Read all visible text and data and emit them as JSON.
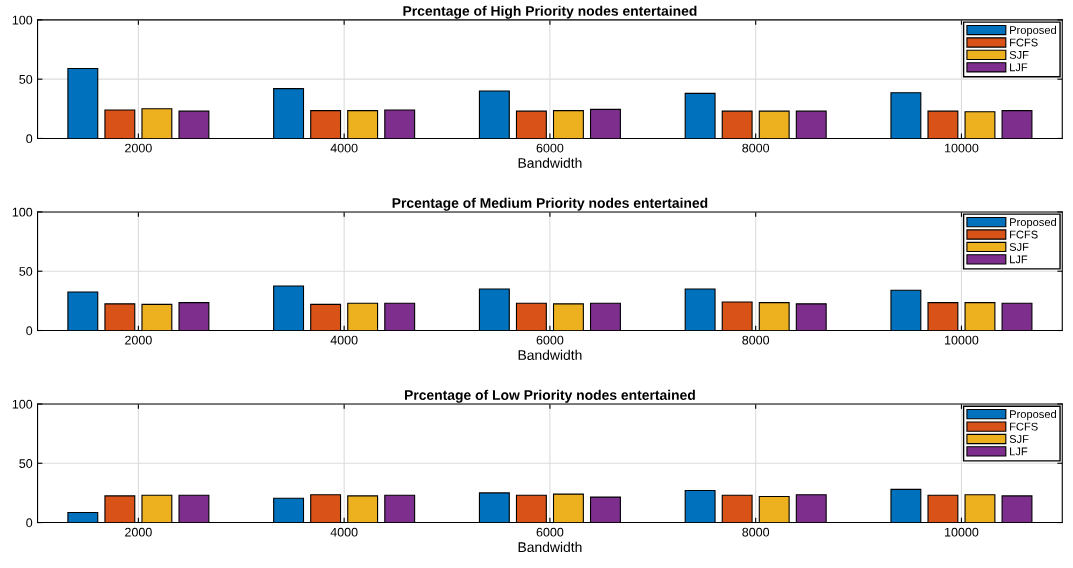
{
  "chart_data": [
    {
      "type": "bar",
      "title": "Prcentage of High Priority nodes entertained",
      "xlabel": "Bandwidth",
      "categories": [
        "2000",
        "4000",
        "6000",
        "8000",
        "10000"
      ],
      "ylim": [
        0,
        100
      ],
      "yticks": [
        0,
        50,
        100
      ],
      "grid": true,
      "legend": "top right",
      "series": [
        {
          "name": "Proposed",
          "color": "#0072bd",
          "values": [
            59,
            42,
            40,
            38,
            38.5
          ]
        },
        {
          "name": "FCFS",
          "color": "#d95319",
          "values": [
            24,
            23.5,
            23,
            23,
            23
          ]
        },
        {
          "name": "SJF",
          "color": "#edb120",
          "values": [
            25,
            23.5,
            23.5,
            23,
            22.5
          ]
        },
        {
          "name": "LJF",
          "color": "#7e2f8e",
          "values": [
            23,
            24,
            24.5,
            23,
            23.5
          ]
        }
      ]
    },
    {
      "type": "bar",
      "title": "Prcentage of Medium Priority nodes entertained",
      "xlabel": "Bandwidth",
      "categories": [
        "2000",
        "4000",
        "6000",
        "8000",
        "10000"
      ],
      "ylim": [
        0,
        100
      ],
      "yticks": [
        0,
        50,
        100
      ],
      "grid": true,
      "legend": "top right",
      "series": [
        {
          "name": "Proposed",
          "color": "#0072bd",
          "values": [
            32.5,
            37.5,
            35,
            35,
            34
          ]
        },
        {
          "name": "FCFS",
          "color": "#d95319",
          "values": [
            22.5,
            22,
            23,
            24,
            23.5
          ]
        },
        {
          "name": "SJF",
          "color": "#edb120",
          "values": [
            22,
            23,
            22.5,
            23.5,
            23.5
          ]
        },
        {
          "name": "LJF",
          "color": "#7e2f8e",
          "values": [
            23.5,
            23,
            23,
            22.5,
            23
          ]
        }
      ]
    },
    {
      "type": "bar",
      "title": "Prcentage of Low Priority nodes entertained",
      "xlabel": "Bandwidth",
      "categories": [
        "2000",
        "4000",
        "6000",
        "8000",
        "10000"
      ],
      "ylim": [
        0,
        100
      ],
      "yticks": [
        0,
        50,
        100
      ],
      "grid": true,
      "legend": "top right",
      "series": [
        {
          "name": "Proposed",
          "color": "#0072bd",
          "values": [
            8.5,
            20.5,
            25,
            27,
            28
          ]
        },
        {
          "name": "FCFS",
          "color": "#d95319",
          "values": [
            22.5,
            23.5,
            23,
            23,
            23
          ]
        },
        {
          "name": "SJF",
          "color": "#edb120",
          "values": [
            23,
            22.5,
            24,
            22,
            23.5
          ]
        },
        {
          "name": "LJF",
          "color": "#7e2f8e",
          "values": [
            23,
            23,
            21.5,
            23.5,
            22.5
          ]
        }
      ]
    }
  ]
}
